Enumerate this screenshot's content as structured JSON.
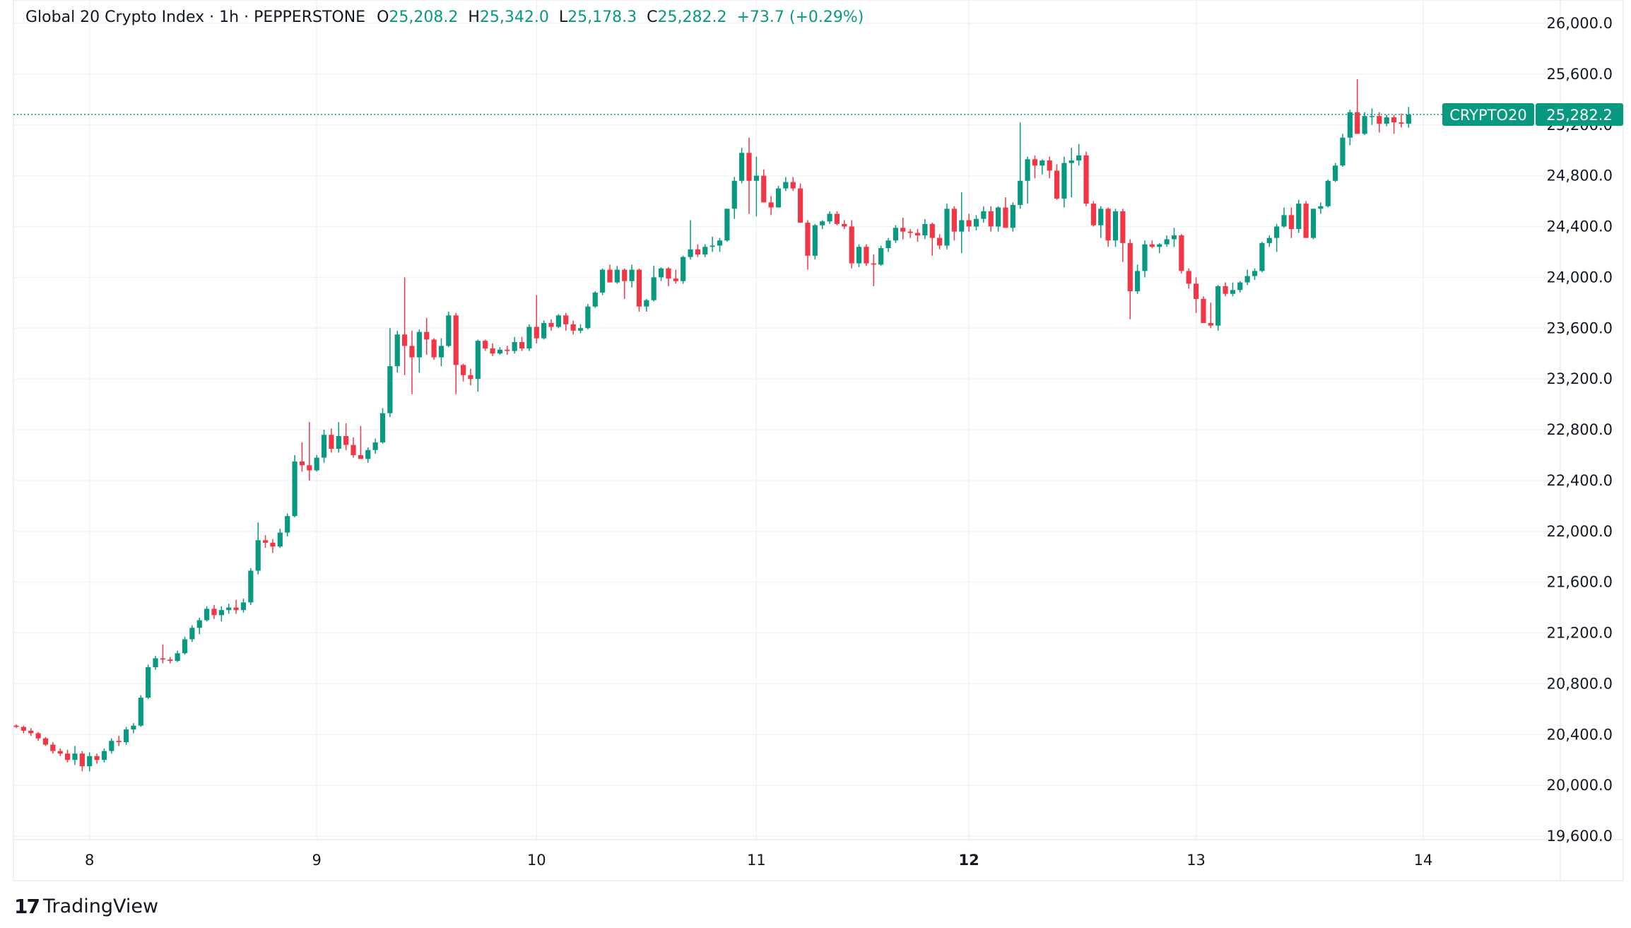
{
  "header": {
    "title": "Global 20 Crypto Index · 1h · PEPPERSTONE",
    "open_label": "O",
    "open": "25,208.2",
    "high_label": "H",
    "high": "25,342.0",
    "low_label": "L",
    "low": "25,178.3",
    "close_label": "C",
    "close": "25,282.2",
    "change": "+73.7 (+0.29%)"
  },
  "branding": {
    "logo_text": "TradingView",
    "logo_mark": "17"
  },
  "colors": {
    "up": "#089981",
    "down": "#f23645",
    "grid": "#f0f3fa",
    "axis_text": "#131722"
  },
  "chart_data": {
    "type": "candlestick",
    "title": "Global 20 Crypto Index · 1h · PEPPERSTONE",
    "symbol": "CRYPTO20",
    "last_price": 25282.2,
    "last_price_label": "25,282.2",
    "ylim": [
      19500,
      26100
    ],
    "y_ticks": [
      19600,
      20000,
      20400,
      20800,
      21200,
      21600,
      22000,
      22400,
      22800,
      23200,
      23600,
      24000,
      24400,
      24800,
      25200,
      25600,
      26000
    ],
    "y_tick_labels": [
      "19,600.0",
      "20,000.0",
      "20,400.0",
      "20,800.0",
      "21,200.0",
      "21,600.0",
      "22,000.0",
      "22,400.0",
      "22,800.0",
      "23,200.0",
      "23,600.0",
      "24,000.0",
      "24,400.0",
      "24,800.0",
      "25,200.0",
      "25,600.0",
      "26,000.0"
    ],
    "x_ticks": [
      {
        "label": "8",
        "candle": 10,
        "bold": false
      },
      {
        "label": "9",
        "candle": 41,
        "bold": false
      },
      {
        "label": "10",
        "candle": 71,
        "bold": false
      },
      {
        "label": "11",
        "candle": 101,
        "bold": false
      },
      {
        "label": "12",
        "candle": 130,
        "bold": true
      },
      {
        "label": "13",
        "candle": 161,
        "bold": false
      },
      {
        "label": "14",
        "candle": 192,
        "bold": false
      }
    ],
    "grid": true,
    "candles": [
      [
        20470,
        20480,
        20450,
        20460
      ],
      [
        20460,
        20470,
        20410,
        20430
      ],
      [
        20430,
        20450,
        20390,
        20410
      ],
      [
        20410,
        20420,
        20350,
        20370
      ],
      [
        20370,
        20380,
        20310,
        20320
      ],
      [
        20320,
        20340,
        20250,
        20270
      ],
      [
        20270,
        20290,
        20230,
        20250
      ],
      [
        20250,
        20280,
        20180,
        20200
      ],
      [
        20200,
        20310,
        20160,
        20250
      ],
      [
        20250,
        20270,
        20110,
        20150
      ],
      [
        20150,
        20260,
        20110,
        20230
      ],
      [
        20230,
        20250,
        20170,
        20200
      ],
      [
        20200,
        20290,
        20180,
        20270
      ],
      [
        20270,
        20370,
        20250,
        20350
      ],
      [
        20350,
        20390,
        20310,
        20340
      ],
      [
        20340,
        20460,
        20320,
        20440
      ],
      [
        20440,
        20490,
        20410,
        20470
      ],
      [
        20470,
        20710,
        20460,
        20690
      ],
      [
        20690,
        20950,
        20680,
        20930
      ],
      [
        20930,
        21020,
        20910,
        21000
      ],
      [
        21000,
        21110,
        20960,
        20990
      ],
      [
        20990,
        21010,
        20960,
        20980
      ],
      [
        20980,
        21060,
        20970,
        21040
      ],
      [
        21040,
        21170,
        21030,
        21150
      ],
      [
        21150,
        21260,
        21130,
        21240
      ],
      [
        21240,
        21320,
        21190,
        21300
      ],
      [
        21300,
        21410,
        21290,
        21390
      ],
      [
        21390,
        21420,
        21310,
        21340
      ],
      [
        21340,
        21410,
        21290,
        21380
      ],
      [
        21380,
        21430,
        21350,
        21400
      ],
      [
        21400,
        21460,
        21350,
        21380
      ],
      [
        21380,
        21470,
        21360,
        21440
      ],
      [
        21440,
        21710,
        21420,
        21690
      ],
      [
        21690,
        22070,
        21660,
        21930
      ],
      [
        21930,
        21970,
        21870,
        21910
      ],
      [
        21910,
        21940,
        21830,
        21880
      ],
      [
        21880,
        22020,
        21870,
        21990
      ],
      [
        21990,
        22140,
        21960,
        22120
      ],
      [
        22120,
        22600,
        22110,
        22550
      ],
      [
        22550,
        22700,
        22470,
        22520
      ],
      [
        22520,
        22860,
        22400,
        22480
      ],
      [
        22480,
        22600,
        22470,
        22580
      ],
      [
        22580,
        22800,
        22540,
        22760
      ],
      [
        22760,
        22810,
        22620,
        22650
      ],
      [
        22650,
        22860,
        22620,
        22750
      ],
      [
        22750,
        22850,
        22640,
        22680
      ],
      [
        22680,
        22740,
        22580,
        22600
      ],
      [
        22600,
        22830,
        22570,
        22570
      ],
      [
        22570,
        22660,
        22540,
        22640
      ],
      [
        22640,
        22730,
        22610,
        22700
      ],
      [
        22700,
        22970,
        22690,
        22930
      ],
      [
        22930,
        23600,
        22900,
        23300
      ],
      [
        23300,
        23580,
        23250,
        23550
      ],
      [
        23550,
        24000,
        23230,
        23460
      ],
      [
        23460,
        23580,
        23080,
        23370
      ],
      [
        23370,
        23590,
        23250,
        23570
      ],
      [
        23570,
        23680,
        23390,
        23510
      ],
      [
        23510,
        23520,
        23350,
        23370
      ],
      [
        23370,
        23520,
        23300,
        23460
      ],
      [
        23460,
        23730,
        23450,
        23700
      ],
      [
        23700,
        23720,
        23080,
        23310
      ],
      [
        23310,
        23320,
        23180,
        23230
      ],
      [
        23230,
        23280,
        23150,
        23200
      ],
      [
        23200,
        23510,
        23100,
        23500
      ],
      [
        23500,
        23510,
        23420,
        23440
      ],
      [
        23440,
        23480,
        23380,
        23400
      ],
      [
        23400,
        23450,
        23390,
        23430
      ],
      [
        23430,
        23460,
        23390,
        23420
      ],
      [
        23420,
        23530,
        23400,
        23490
      ],
      [
        23490,
        23530,
        23420,
        23440
      ],
      [
        23440,
        23630,
        23420,
        23610
      ],
      [
        23610,
        23860,
        23480,
        23520
      ],
      [
        23520,
        23660,
        23510,
        23640
      ],
      [
        23640,
        23670,
        23580,
        23610
      ],
      [
        23610,
        23710,
        23600,
        23700
      ],
      [
        23700,
        23720,
        23580,
        23630
      ],
      [
        23630,
        23660,
        23550,
        23580
      ],
      [
        23580,
        23630,
        23560,
        23600
      ],
      [
        23600,
        23790,
        23590,
        23770
      ],
      [
        23770,
        23890,
        23760,
        23880
      ],
      [
        23880,
        24070,
        23860,
        24060
      ],
      [
        24060,
        24100,
        23960,
        23960
      ],
      [
        23960,
        24090,
        23950,
        24060
      ],
      [
        24060,
        24070,
        23830,
        23970
      ],
      [
        23970,
        24100,
        23920,
        24060
      ],
      [
        24060,
        24070,
        23730,
        23770
      ],
      [
        23770,
        23830,
        23730,
        23820
      ],
      [
        23820,
        24090,
        23810,
        24000
      ],
      [
        24000,
        24080,
        23970,
        24070
      ],
      [
        24070,
        24080,
        23930,
        23990
      ],
      [
        23990,
        24060,
        23950,
        23970
      ],
      [
        23970,
        24170,
        23950,
        24160
      ],
      [
        24160,
        24450,
        24140,
        24220
      ],
      [
        24220,
        24260,
        24160,
        24180
      ],
      [
        24180,
        24260,
        24160,
        24240
      ],
      [
        24240,
        24320,
        24200,
        24250
      ],
      [
        24250,
        24310,
        24200,
        24290
      ],
      [
        24290,
        24530,
        24280,
        24540
      ],
      [
        24540,
        24790,
        24460,
        24760
      ],
      [
        24760,
        25020,
        24740,
        24980
      ],
      [
        24980,
        25100,
        24500,
        24760
      ],
      [
        24760,
        24950,
        24480,
        24800
      ],
      [
        24800,
        24850,
        24590,
        24590
      ],
      [
        24590,
        24640,
        24490,
        24550
      ],
      [
        24550,
        24720,
        24550,
        24700
      ],
      [
        24700,
        24790,
        24680,
        24750
      ],
      [
        24750,
        24790,
        24680,
        24700
      ],
      [
        24700,
        24740,
        24450,
        24430
      ],
      [
        24430,
        24450,
        24060,
        24170
      ],
      [
        24170,
        24420,
        24140,
        24410
      ],
      [
        24410,
        24450,
        24380,
        24440
      ],
      [
        24440,
        24520,
        24420,
        24500
      ],
      [
        24500,
        24520,
        24410,
        24420
      ],
      [
        24420,
        24450,
        24380,
        24400
      ],
      [
        24400,
        24450,
        24070,
        24110
      ],
      [
        24110,
        24260,
        24080,
        24240
      ],
      [
        24240,
        24260,
        24090,
        24110
      ],
      [
        24110,
        24180,
        23930,
        24100
      ],
      [
        24100,
        24250,
        24090,
        24230
      ],
      [
        24230,
        24310,
        24200,
        24290
      ],
      [
        24290,
        24410,
        24270,
        24390
      ],
      [
        24390,
        24470,
        24300,
        24360
      ],
      [
        24360,
        24380,
        24310,
        24350
      ],
      [
        24350,
        24380,
        24280,
        24330
      ],
      [
        24330,
        24460,
        24300,
        24420
      ],
      [
        24420,
        24430,
        24170,
        24310
      ],
      [
        24310,
        24340,
        24220,
        24250
      ],
      [
        24250,
        24580,
        24220,
        24540
      ],
      [
        24540,
        24560,
        24290,
        24360
      ],
      [
        24360,
        24670,
        24190,
        24450
      ],
      [
        24450,
        24500,
        24360,
        24400
      ],
      [
        24400,
        24490,
        24370,
        24460
      ],
      [
        24460,
        24560,
        24430,
        24520
      ],
      [
        24520,
        24560,
        24360,
        24400
      ],
      [
        24400,
        24560,
        24360,
        24550
      ],
      [
        24550,
        24630,
        24420,
        24390
      ],
      [
        24390,
        24590,
        24360,
        24570
      ],
      [
        24570,
        25220,
        24540,
        24760
      ],
      [
        24760,
        24950,
        24580,
        24930
      ],
      [
        24930,
        24960,
        24780,
        24880
      ],
      [
        24880,
        24930,
        24810,
        24920
      ],
      [
        24920,
        24950,
        24780,
        24840
      ],
      [
        24840,
        24890,
        24610,
        24620
      ],
      [
        24620,
        24950,
        24550,
        24900
      ],
      [
        24900,
        25020,
        24630,
        24920
      ],
      [
        24920,
        25050,
        24880,
        24960
      ],
      [
        24960,
        24990,
        24560,
        24580
      ],
      [
        24580,
        24600,
        24400,
        24410
      ],
      [
        24410,
        24560,
        24310,
        24540
      ],
      [
        24540,
        24550,
        24240,
        24290
      ],
      [
        24290,
        24540,
        24240,
        24520
      ],
      [
        24520,
        24540,
        24120,
        24270
      ],
      [
        24270,
        24300,
        23670,
        23890
      ],
      [
        23890,
        24100,
        23870,
        24050
      ],
      [
        24050,
        24290,
        24000,
        24260
      ],
      [
        24260,
        24290,
        24230,
        24240
      ],
      [
        24240,
        24270,
        24190,
        24260
      ],
      [
        24260,
        24330,
        24240,
        24300
      ],
      [
        24300,
        24390,
        24240,
        24330
      ],
      [
        24330,
        24340,
        24030,
        24050
      ],
      [
        24050,
        24070,
        23910,
        23950
      ],
      [
        23950,
        24000,
        23720,
        23830
      ],
      [
        23830,
        23850,
        23650,
        23640
      ],
      [
        23640,
        23800,
        23600,
        23620
      ],
      [
        23620,
        23940,
        23580,
        23930
      ],
      [
        23930,
        23960,
        23850,
        23870
      ],
      [
        23870,
        23960,
        23850,
        23900
      ],
      [
        23900,
        23970,
        23880,
        23960
      ],
      [
        23960,
        24060,
        23940,
        24010
      ],
      [
        24010,
        24070,
        23980,
        24050
      ],
      [
        24050,
        24280,
        24040,
        24270
      ],
      [
        24270,
        24330,
        24240,
        24310
      ],
      [
        24310,
        24420,
        24200,
        24400
      ],
      [
        24400,
        24550,
        24390,
        24490
      ],
      [
        24490,
        24550,
        24310,
        24380
      ],
      [
        24380,
        24610,
        24350,
        24580
      ],
      [
        24580,
        24600,
        24320,
        24310
      ],
      [
        24310,
        24540,
        24300,
        24540
      ],
      [
        24540,
        24590,
        24500,
        24560
      ],
      [
        24560,
        24770,
        24550,
        24760
      ],
      [
        24760,
        24900,
        24750,
        24880
      ],
      [
        24880,
        25130,
        24870,
        25100
      ],
      [
        25100,
        25320,
        25040,
        25300
      ],
      [
        25300,
        25560,
        25130,
        25130
      ],
      [
        25130,
        25300,
        25120,
        25270
      ],
      [
        25270,
        25330,
        25200,
        25270
      ],
      [
        25270,
        25300,
        25140,
        25210
      ],
      [
        25210,
        25280,
        25190,
        25260
      ],
      [
        25260,
        25280,
        25130,
        25220
      ],
      [
        25220,
        25290,
        25180,
        25210
      ],
      [
        25210,
        25342,
        25178,
        25282
      ]
    ]
  }
}
